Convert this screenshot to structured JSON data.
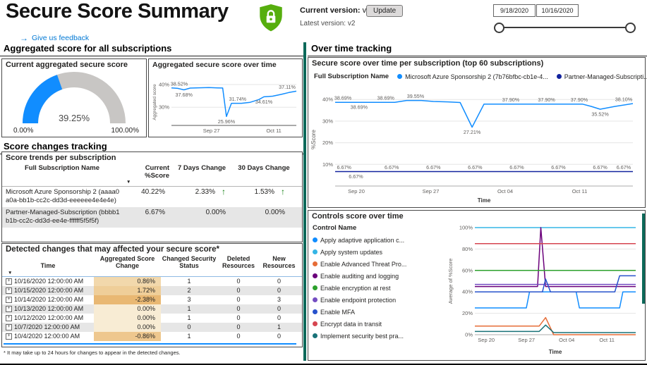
{
  "header": {
    "title": "Secure Score Summary",
    "feedback": "Give us feedback",
    "current_version_label": "Current version:",
    "current_version_value": "v2",
    "latest_version_label": "Latest version:",
    "latest_version_value": "v2",
    "update_button": "Update",
    "date_start": "9/18/2020",
    "date_end": "10/16/2020"
  },
  "icons": {
    "sort_desc": "▼",
    "expand": "+",
    "up_arrow": "↑",
    "feedback_arrow": "→"
  },
  "colors": {
    "accent_blue": "#118DFF",
    "navy": "#12239E",
    "teal_bar": "#0C695A",
    "row_alt": "#E6E6E6",
    "positive_green": "#0D7D0D",
    "gauge_track": "#C8C6C4"
  },
  "left": {
    "sections": {
      "aggregated": "Aggregated score for all subscriptions",
      "score_changes": "Score changes tracking"
    },
    "trends": {
      "title": "Score trends per subscription",
      "columns": [
        "Full Subscription Name",
        "Current %Score",
        "7 Days Change",
        "30 Days Change"
      ],
      "rows": [
        {
          "name": "Microsoft Azure Sponsorship 2 (aaaa0a0a-bb1b-cc2c-dd3d-eeeeee4e4e4e)",
          "current": "40.22%",
          "d7": "2.33%",
          "d7_arrow": "up",
          "d30": "1.53%",
          "d30_arrow": "up"
        },
        {
          "name": "Partner-Managed-Subscription (bbbb1b1b-cc2c-dd3d-ee4e-ffffff5f5f5f)",
          "current": "6.67%",
          "d7": "0.00%",
          "d7_arrow": "",
          "d30": "0.00%",
          "d30_arrow": ""
        }
      ]
    },
    "detected": {
      "title": "Detected changes that may affected your secure score*",
      "columns": [
        "Time",
        "Aggregated Score Change",
        "Changed Security Status",
        "Deleted Resources",
        "New Resources"
      ],
      "rows": [
        {
          "time": "10/16/2020 12:00:00 AM",
          "agg": "0.86%",
          "agg_bg": "#F2D8AC",
          "changed": "1",
          "deleted": "0",
          "new": "0"
        },
        {
          "time": "10/15/2020 12:00:00 AM",
          "agg": "1.72%",
          "agg_bg": "#EFCE99",
          "changed": "2",
          "deleted": "0",
          "new": "0"
        },
        {
          "time": "10/14/2020 12:00:00 AM",
          "agg": "-2.38%",
          "agg_bg": "#E9B873",
          "changed": "3",
          "deleted": "0",
          "new": "3"
        },
        {
          "time": "10/13/2020 12:00:00 AM",
          "agg": "0.00%",
          "agg_bg": "#F8ECD4",
          "changed": "1",
          "deleted": "0",
          "new": "0"
        },
        {
          "time": "10/12/2020 12:00:00 AM",
          "agg": "0.00%",
          "agg_bg": "#F8ECD4",
          "changed": "1",
          "deleted": "0",
          "new": "0"
        },
        {
          "time": "10/7/2020 12:00:00 AM",
          "agg": "0.00%",
          "agg_bg": "#F8ECD4",
          "changed": "0",
          "deleted": "0",
          "new": "1"
        },
        {
          "time": "10/4/2020 12:00:00 AM",
          "agg": "-0.86%",
          "agg_bg": "#EEC78E",
          "changed": "1",
          "deleted": "0",
          "new": "0"
        }
      ],
      "footnote": "* It may take up to 24 hours for changes to appear in the detected changes."
    }
  },
  "right": {
    "section_heading": "Over time tracking"
  },
  "chart_data": [
    {
      "id": "gauge",
      "type": "gauge",
      "title": "Current aggregated secure score",
      "value": 39.25,
      "value_label": "39.25%",
      "min": 0,
      "max": 100,
      "min_label": "0.00%",
      "max_label": "100.00%",
      "color": "#118DFF"
    },
    {
      "id": "agg-over-time",
      "type": "line",
      "title": "Aggregated secure score over time",
      "ylabel": "Aggregated score",
      "xlabel": "",
      "ylim": [
        22,
        42.5
      ],
      "yticks": [
        {
          "v": 30,
          "label": "30%"
        },
        {
          "v": 40,
          "label": "40%"
        }
      ],
      "xticks": [
        {
          "x": 0.32,
          "label": "Sep 27"
        },
        {
          "x": 0.82,
          "label": "Oct 11"
        }
      ],
      "series": [
        {
          "name": "Aggregated score",
          "color": "#118DFF",
          "points": [
            [
              0,
              38.52
            ],
            [
              0.05,
              38.35
            ],
            [
              0.1,
              37.68
            ],
            [
              0.15,
              38.45
            ],
            [
              0.22,
              38.6
            ],
            [
              0.3,
              38.69
            ],
            [
              0.37,
              38.55
            ],
            [
              0.41,
              38.5
            ],
            [
              0.44,
              25.96
            ],
            [
              0.48,
              31.74
            ],
            [
              0.56,
              31.74
            ],
            [
              0.63,
              32.2
            ],
            [
              0.7,
              33.4
            ],
            [
              0.74,
              34.61
            ],
            [
              0.81,
              34.9
            ],
            [
              0.88,
              35.7
            ],
            [
              0.94,
              36.5
            ],
            [
              1,
              37.11
            ]
          ],
          "labels": [
            {
              "x": 0.03,
              "v": 38.52,
              "text": "38.52%",
              "pos": "above"
            },
            {
              "x": 0.1,
              "v": 37.68,
              "text": "37.68%",
              "pos": "below"
            },
            {
              "x": 0.44,
              "v": 25.96,
              "text": "25.96%",
              "pos": "below"
            },
            {
              "x": 0.53,
              "v": 31.74,
              "text": "31.74%",
              "pos": "above"
            },
            {
              "x": 0.74,
              "v": 34.61,
              "text": "34.61%",
              "pos": "below"
            },
            {
              "x": 0.96,
              "v": 37.11,
              "text": "37.11%",
              "pos": "above"
            }
          ]
        }
      ]
    },
    {
      "id": "subs-over-time",
      "type": "line",
      "title": "Secure score over time per subscription (top 60 subscriptions)",
      "legend_title": "Full Subscription Name",
      "ylabel": "%Score",
      "xlabel": "Time",
      "ylim": [
        0,
        43
      ],
      "yticks": [
        {
          "v": 10,
          "label": "10%"
        },
        {
          "v": 20,
          "label": "20%"
        },
        {
          "v": 30,
          "label": "30%"
        },
        {
          "v": 40,
          "label": "40%"
        }
      ],
      "xticks": [
        {
          "x": 0.071,
          "label": "Sep 20"
        },
        {
          "x": 0.321,
          "label": "Sep 27"
        },
        {
          "x": 0.571,
          "label": "Oct 04"
        },
        {
          "x": 0.821,
          "label": "Oct 11"
        }
      ],
      "series": [
        {
          "name": "Microsoft Azure Sponsorship 2 (7b76bfbc-cb1e-4...",
          "color": "#118DFF",
          "points": [
            [
              0,
              38.69
            ],
            [
              0.06,
              38.69
            ],
            [
              0.11,
              38.69
            ],
            [
              0.16,
              38.69
            ],
            [
              0.2,
              38.69
            ],
            [
              0.24,
              39.55
            ],
            [
              0.29,
              39.55
            ],
            [
              0.33,
              39.1
            ],
            [
              0.38,
              38.9
            ],
            [
              0.42,
              38.6
            ],
            [
              0.46,
              27.21
            ],
            [
              0.5,
              37.9
            ],
            [
              0.57,
              37.9
            ],
            [
              0.64,
              37.9
            ],
            [
              0.71,
              37.9
            ],
            [
              0.78,
              37.9
            ],
            [
              0.83,
              37.9
            ],
            [
              0.86,
              36.8
            ],
            [
              0.89,
              35.52
            ],
            [
              0.94,
              36.8
            ],
            [
              1,
              38.1
            ]
          ],
          "labels": [
            {
              "x": 0.02,
              "v": 38.69,
              "text": "38.69%",
              "pos": "above"
            },
            {
              "x": 0.08,
              "v": 38.69,
              "text": "38.69%",
              "pos": "below"
            },
            {
              "x": 0.17,
              "v": 38.69,
              "text": "38.69%",
              "pos": "above"
            },
            {
              "x": 0.27,
              "v": 39.55,
              "text": "39.55%",
              "pos": "above"
            },
            {
              "x": 0.46,
              "v": 27.21,
              "text": "27.21%",
              "pos": "below"
            },
            {
              "x": 0.59,
              "v": 37.9,
              "text": "37.90%",
              "pos": "above"
            },
            {
              "x": 0.71,
              "v": 37.9,
              "text": "37.90%",
              "pos": "above"
            },
            {
              "x": 0.82,
              "v": 37.9,
              "text": "37.90%",
              "pos": "above"
            },
            {
              "x": 0.89,
              "v": 35.52,
              "text": "35.52%",
              "pos": "below"
            },
            {
              "x": 0.98,
              "v": 38.1,
              "text": "38.10%",
              "pos": "above"
            }
          ]
        },
        {
          "name": "Partner-Managed-Subscripti...",
          "color": "#12239E",
          "points": [
            [
              0,
              6.67
            ],
            [
              1,
              6.67
            ]
          ],
          "labels": [
            {
              "x": 0.03,
              "v": 6.67,
              "text": "6.67%",
              "pos": "above"
            },
            {
              "x": 0.07,
              "v": 6.67,
              "text": "6.67%",
              "pos": "below"
            },
            {
              "x": 0.19,
              "v": 6.67,
              "text": "6.67%",
              "pos": "above"
            },
            {
              "x": 0.33,
              "v": 6.67,
              "text": "6.67%",
              "pos": "above"
            },
            {
              "x": 0.47,
              "v": 6.67,
              "text": "6.67%",
              "pos": "above"
            },
            {
              "x": 0.61,
              "v": 6.67,
              "text": "6.67%",
              "pos": "above"
            },
            {
              "x": 0.75,
              "v": 6.67,
              "text": "6.67%",
              "pos": "above"
            },
            {
              "x": 0.89,
              "v": 6.67,
              "text": "6.67%",
              "pos": "above"
            },
            {
              "x": 0.98,
              "v": 6.67,
              "text": "6.67%",
              "pos": "above"
            }
          ]
        }
      ]
    },
    {
      "id": "controls-over-time",
      "type": "line",
      "title": "Controls score over time",
      "legend_title": "Control Name",
      "ylabel": "Average of %Score",
      "xlabel": "Time",
      "ylim": [
        0,
        100
      ],
      "yticks": [
        {
          "v": 0,
          "label": "0%"
        },
        {
          "v": 20,
          "label": "20%"
        },
        {
          "v": 40,
          "label": "40%"
        },
        {
          "v": 60,
          "label": "60%"
        },
        {
          "v": 80,
          "label": "80%"
        },
        {
          "v": 100,
          "label": "100%"
        }
      ],
      "xticks": [
        {
          "x": 0.071,
          "label": "Sep 20"
        },
        {
          "x": 0.321,
          "label": "Sep 27"
        },
        {
          "x": 0.571,
          "label": "Oct 04"
        },
        {
          "x": 0.821,
          "label": "Oct 11"
        }
      ],
      "series": [
        {
          "name": "Apply adaptive application c...",
          "color": "#118DFF",
          "points": [
            [
              0,
              25
            ],
            [
              0.32,
              25
            ],
            [
              0.34,
              40
            ],
            [
              0.63,
              40
            ],
            [
              0.65,
              25
            ],
            [
              0.9,
              25
            ],
            [
              0.92,
              40
            ],
            [
              1,
              40
            ]
          ]
        },
        {
          "name": "Apply system updates",
          "color": "#35B5E5",
          "points": [
            [
              0,
              100
            ],
            [
              1,
              100
            ]
          ]
        },
        {
          "name": "Enable Advanced Threat Pro...",
          "color": "#E66C37",
          "points": [
            [
              0,
              8
            ],
            [
              0.4,
              8
            ],
            [
              0.44,
              16
            ],
            [
              0.49,
              0
            ],
            [
              1,
              0
            ]
          ]
        },
        {
          "name": "Enable auditing and logging",
          "color": "#6B007B",
          "points": [
            [
              0,
              45
            ],
            [
              0.39,
              45
            ],
            [
              0.41,
              100
            ],
            [
              0.44,
              45
            ],
            [
              1,
              45
            ]
          ]
        },
        {
          "name": "Enable encryption at rest",
          "color": "#2CA02C",
          "points": [
            [
              0,
              60
            ],
            [
              1,
              60
            ]
          ]
        },
        {
          "name": "Enable endpoint protection",
          "color": "#744EC2",
          "points": [
            [
              0,
              47
            ],
            [
              1,
              47
            ]
          ]
        },
        {
          "name": "Enable MFA",
          "color": "#2752CC",
          "points": [
            [
              0,
              40
            ],
            [
              0.42,
              40
            ],
            [
              0.44,
              52
            ],
            [
              0.47,
              40
            ],
            [
              0.87,
              40
            ],
            [
              0.9,
              55
            ],
            [
              1,
              55
            ]
          ]
        },
        {
          "name": "Encrypt data in transit",
          "color": "#D64550",
          "points": [
            [
              0,
              85
            ],
            [
              1,
              85
            ]
          ]
        },
        {
          "name": "Implement security best pra...",
          "color": "#197278",
          "points": [
            [
              0,
              3
            ],
            [
              0.4,
              3
            ],
            [
              0.44,
              9
            ],
            [
              0.49,
              2
            ],
            [
              1,
              2
            ]
          ]
        }
      ]
    }
  ]
}
